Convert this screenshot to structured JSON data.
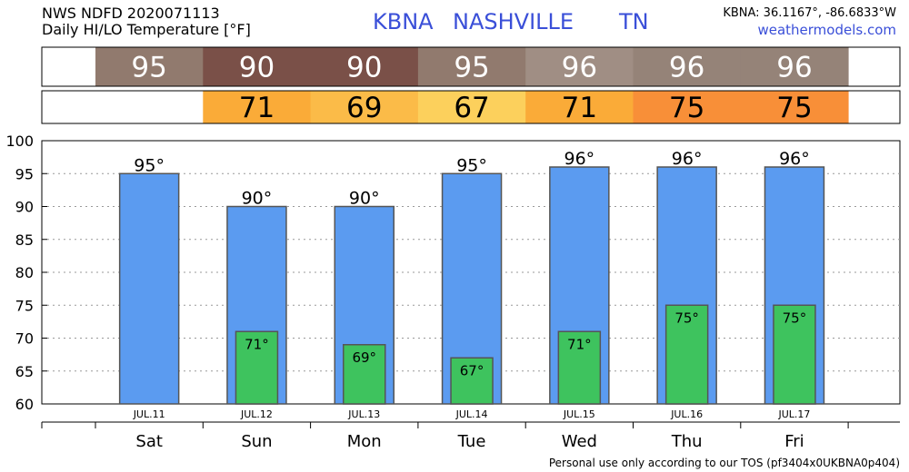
{
  "header": {
    "product_line": "NWS NDFD 2020071113",
    "title_line": "Daily HI/LO Temperature [°F]",
    "station_id": "KBNA",
    "station_name": "NASHVILLE",
    "state": "TN",
    "coords": "KBNA: 36.1167°, -86.6833°W",
    "site": "weathermodels.com"
  },
  "footer": {
    "tos": "Personal use only according to our TOS (pf3404x0UKBNA0p404)"
  },
  "colors": {
    "hi_bar": "#5b9bf0",
    "lo_bar": "#3ec35e",
    "title_blue": "#3a4fd8"
  },
  "strips": {
    "hi": {
      "values": [
        "95",
        "90",
        "90",
        "95",
        "96",
        "96",
        "96"
      ],
      "colors": [
        "#917a6e",
        "#7a5048",
        "#7a5048",
        "#917a6e",
        "#a08e84",
        "#958378",
        "#958378"
      ]
    },
    "lo": {
      "values": [
        "",
        "71",
        "69",
        "67",
        "71",
        "75",
        "75"
      ],
      "colors": [
        "#ffffff",
        "#faab38",
        "#fbbb48",
        "#fcd05c",
        "#faab38",
        "#f88f38",
        "#f88f38"
      ]
    }
  },
  "chart_data": {
    "type": "bar",
    "categories": [
      "Sat",
      "Sun",
      "Mon",
      "Tue",
      "Wed",
      "Thu",
      "Fri"
    ],
    "dates": [
      "JUL.11",
      "JUL.12",
      "JUL.13",
      "JUL.14",
      "JUL.15",
      "JUL.16",
      "JUL.17"
    ],
    "series": [
      {
        "values": [
          95,
          90,
          90,
          95,
          96,
          96,
          96
        ]
      },
      {
        "values": [
          null,
          71,
          69,
          67,
          71,
          75,
          75
        ]
      }
    ],
    "hi_labels": [
      "95°",
      "90°",
      "90°",
      "95°",
      "96°",
      "96°",
      "96°"
    ],
    "lo_labels": [
      "",
      "71°",
      "69°",
      "67°",
      "71°",
      "75°",
      "75°"
    ],
    "ylim": [
      60,
      100
    ],
    "yticks": [
      "60",
      "65",
      "70",
      "75",
      "80",
      "85",
      "90",
      "95",
      "100"
    ],
    "grid": true
  }
}
